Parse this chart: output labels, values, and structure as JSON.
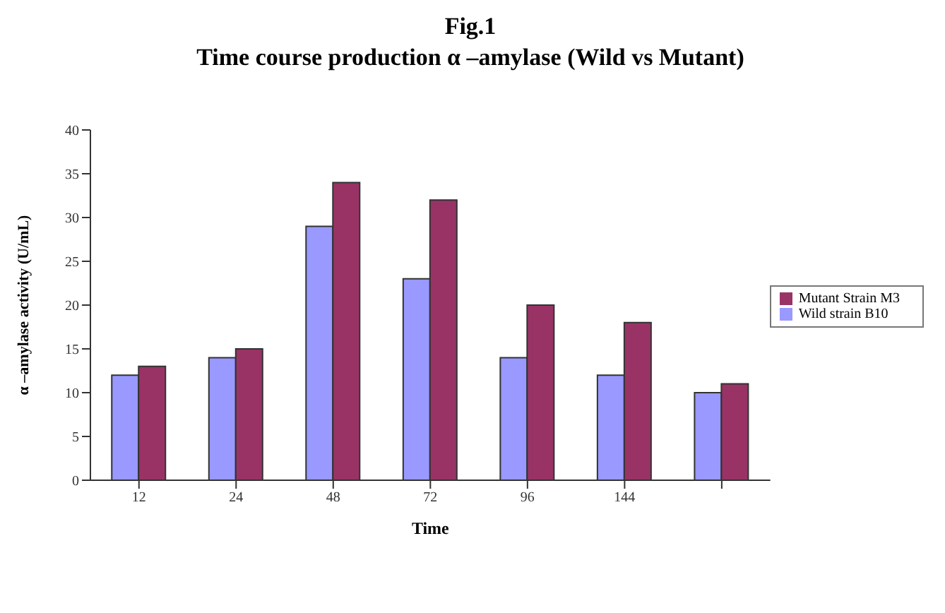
{
  "chart_data": {
    "type": "bar",
    "title": "Fig.1",
    "subtitle": "Time course production α –amylase (Wild vs Mutant)",
    "xlabel": "Time",
    "ylabel": "α –amylase activity (U/mL)",
    "categories": [
      "12",
      "24",
      "48",
      "72",
      "96",
      "144",
      null
    ],
    "series": [
      {
        "name": "Wild strain B10",
        "color": "#9999ff",
        "values": [
          12,
          14,
          29,
          23,
          14,
          12,
          10
        ]
      },
      {
        "name": "Mutant Strain M3",
        "color": "#993366",
        "values": [
          13,
          15,
          34,
          32,
          20,
          18,
          11
        ]
      }
    ],
    "ylim": [
      0,
      40
    ],
    "yticks": [
      0,
      5,
      10,
      15,
      20,
      25,
      30,
      35,
      40
    ],
    "grid": false,
    "legend": "right"
  }
}
